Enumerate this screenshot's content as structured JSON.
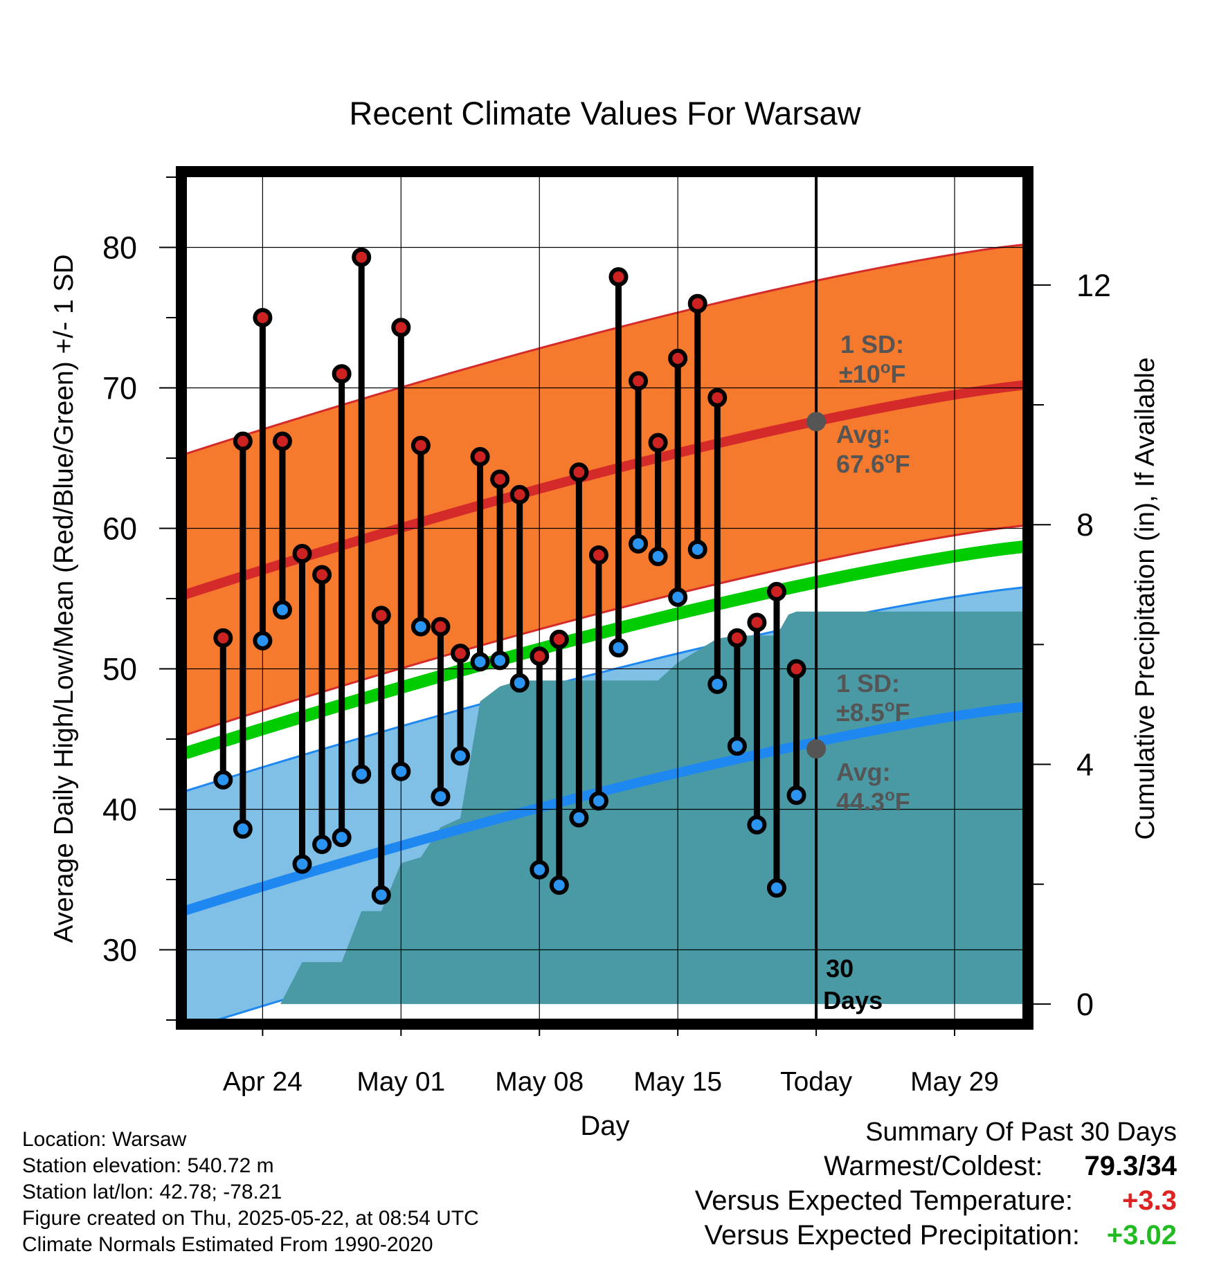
{
  "chart_data": {
    "type": "line",
    "title": "Recent Climate Values For Warsaw",
    "xlabel": "Day",
    "ylabel": "Average Daily High/Low/Mean (Red/Blue/Green) +/- 1 SD",
    "y2label": "Cumulative Precipitation (in), If Available",
    "ylim": [
      25,
      85
    ],
    "y2lim": [
      -0.267,
      13.8
    ],
    "xlim_days_from_apr21": [
      -0.9,
      41.5
    ],
    "grid": true,
    "x_tick_labels": [
      "Apr 24",
      "May 01",
      "May 08",
      "May 15",
      "Today",
      "May 29"
    ],
    "x_tick_days": [
      3,
      10,
      17,
      24,
      31,
      38
    ],
    "y_ticks": [
      30,
      40,
      50,
      60,
      70,
      80
    ],
    "y2_ticks": [
      0,
      4,
      8,
      12
    ],
    "today_day": 31,
    "today_label_line1": "30",
    "today_label_line2": "Days",
    "dates": [
      "Apr 22",
      "Apr 23",
      "Apr 24",
      "Apr 25",
      "Apr 26",
      "Apr 27",
      "Apr 28",
      "Apr 29",
      "Apr 30",
      "May 01",
      "May 02",
      "May 03",
      "May 04",
      "May 05",
      "May 06",
      "May 07",
      "May 08",
      "May 09",
      "May 10",
      "May 11",
      "May 12",
      "May 13",
      "May 14",
      "May 15",
      "May 16",
      "May 17",
      "May 18",
      "May 19",
      "May 20",
      "May 21"
    ],
    "series": [
      {
        "name": "High",
        "color": "#cc2222",
        "values": [
          52.2,
          66.2,
          75.0,
          66.2,
          58.2,
          56.7,
          71.0,
          79.3,
          53.8,
          74.3,
          65.9,
          53.0,
          51.1,
          65.1,
          63.5,
          62.4,
          50.9,
          52.1,
          64.0,
          58.1,
          77.9,
          70.5,
          66.1,
          72.1,
          76.0,
          69.3,
          52.2,
          53.3,
          55.5,
          50.0
        ]
      },
      {
        "name": "Low",
        "color": "#2a94f0",
        "values": [
          42.1,
          38.6,
          52.0,
          54.2,
          36.1,
          37.5,
          38.0,
          42.5,
          33.9,
          42.7,
          53.0,
          40.9,
          43.8,
          50.5,
          50.6,
          49.0,
          35.7,
          34.6,
          39.4,
          40.6,
          51.5,
          58.9,
          58.0,
          55.1,
          58.5,
          48.9,
          44.5,
          38.9,
          34.4,
          41.0
        ]
      },
      {
        "name": "Normal High",
        "color": "#d42a2a",
        "x": [
          -0.9,
          41.5
        ],
        "values": [
          55.3,
          70.2
        ],
        "sd": 10
      },
      {
        "name": "Normal Low",
        "color": "#1e88f0",
        "x": [
          -0.9,
          41.5
        ],
        "values": [
          32.8,
          47.3
        ],
        "sd": 8.5
      },
      {
        "name": "Normal Mean",
        "color": "#00cc00",
        "x": [
          -0.9,
          41.5
        ],
        "values": [
          44.0,
          58.7
        ]
      },
      {
        "name": "Cumulative Precipitation",
        "color": "#4a9aa6",
        "days": [
          2.5,
          3.9,
          5.0,
          6.0,
          7.0,
          8.0,
          9.0,
          10.0,
          11.0,
          12.0,
          13.0,
          14.0,
          15.0,
          16.0,
          17.0,
          18.0,
          19.0,
          20.0,
          21.0,
          22.0,
          23.0,
          24.0,
          25.0,
          26.0,
          27.0,
          28.0,
          29.0,
          29.6,
          30.0,
          41.5
        ],
        "values": [
          0.0,
          0.0,
          0.7,
          0.7,
          0.7,
          1.55,
          1.55,
          2.35,
          2.45,
          2.95,
          3.1,
          5.05,
          5.3,
          5.4,
          5.4,
          5.4,
          5.4,
          5.4,
          5.4,
          5.4,
          5.4,
          5.7,
          5.9,
          6.1,
          6.15,
          6.15,
          6.15,
          6.5,
          6.55,
          6.55
        ]
      }
    ],
    "annotations": {
      "high": {
        "sd_line1": "1 SD:",
        "sd_line2": "±10",
        "sd_unit": "F",
        "avg_line1": "Avg:",
        "avg_line2": "67.6",
        "avg_unit": "F",
        "avg_value": 67.6
      },
      "low": {
        "sd_line1": "1 SD:",
        "sd_line2": "±8.5",
        "sd_unit": "F",
        "avg_line1": "Avg:",
        "avg_line2": "44.3",
        "avg_unit": "F",
        "avg_value": 44.3
      },
      "degree_symbol": "o"
    },
    "colors": {
      "high_band": "#f57a2e",
      "low_band": "#80c0e6",
      "precip": "#4a9aa6",
      "marker_high": "#cc2222",
      "marker_low": "#2a94f0",
      "annotation_text": "#555555",
      "avg_marker": "#555555"
    }
  },
  "info": {
    "location": "Location: Warsaw",
    "elevation": "Station elevation: 540.72 m",
    "latlon": "Station lat/lon: 42.78; -78.21",
    "created": "Figure created on Thu, 2025-05-22, at 08:54 UTC",
    "normals": "Climate Normals Estimated From 1990-2020"
  },
  "summary": {
    "title": "Summary Of Past 30 Days",
    "warmest_label": "Warmest/Coldest:",
    "warmest_value": "79.3/34",
    "temp_label": "Versus Expected Temperature:",
    "temp_value": "+3.3",
    "temp_color": "#dd2222",
    "precip_label": "Versus Expected Precipitation:",
    "precip_value": "+3.02",
    "precip_color": "#22bb22"
  }
}
